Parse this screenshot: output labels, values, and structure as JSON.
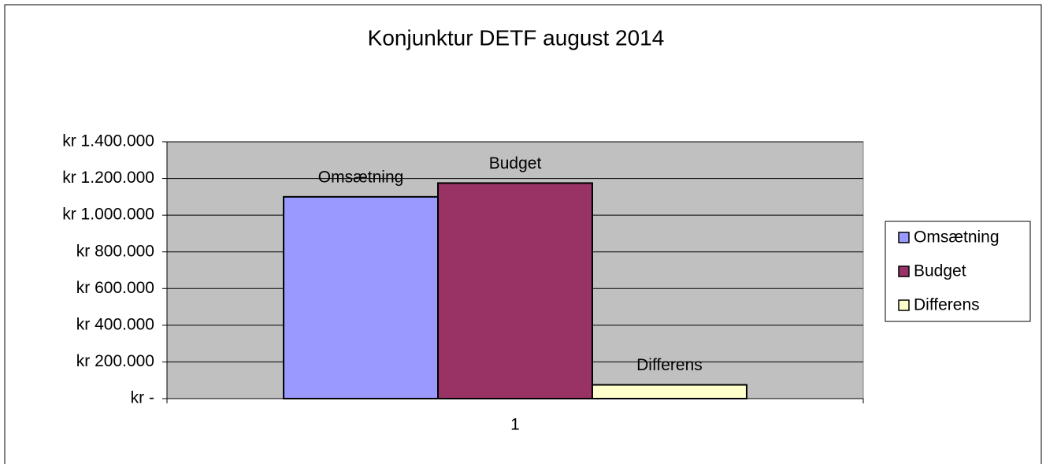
{
  "chart_data": {
    "type": "bar",
    "title": "Konjunktur DETF august 2014",
    "categories": [
      "1"
    ],
    "series": [
      {
        "name": "Omsætning",
        "color": "#9999ff",
        "values": [
          1100000
        ]
      },
      {
        "name": "Budget",
        "color": "#993366",
        "values": [
          1175000
        ]
      },
      {
        "name": "Differens",
        "color": "#ffffcc",
        "values": [
          75000
        ]
      }
    ],
    "ylim": [
      0,
      1400000
    ],
    "yticks": [
      {
        "value": 0,
        "label": "kr -"
      },
      {
        "value": 200000,
        "label": "kr 200.000"
      },
      {
        "value": 400000,
        "label": "kr 400.000"
      },
      {
        "value": 600000,
        "label": "kr 600.000"
      },
      {
        "value": 800000,
        "label": "kr 800.000"
      },
      {
        "value": 1000000,
        "label": "kr 1.000.000"
      },
      {
        "value": 1200000,
        "label": "kr 1.200.000"
      },
      {
        "value": 1400000,
        "label": "kr 1.400.000"
      }
    ],
    "grid": true,
    "legend": "right"
  }
}
